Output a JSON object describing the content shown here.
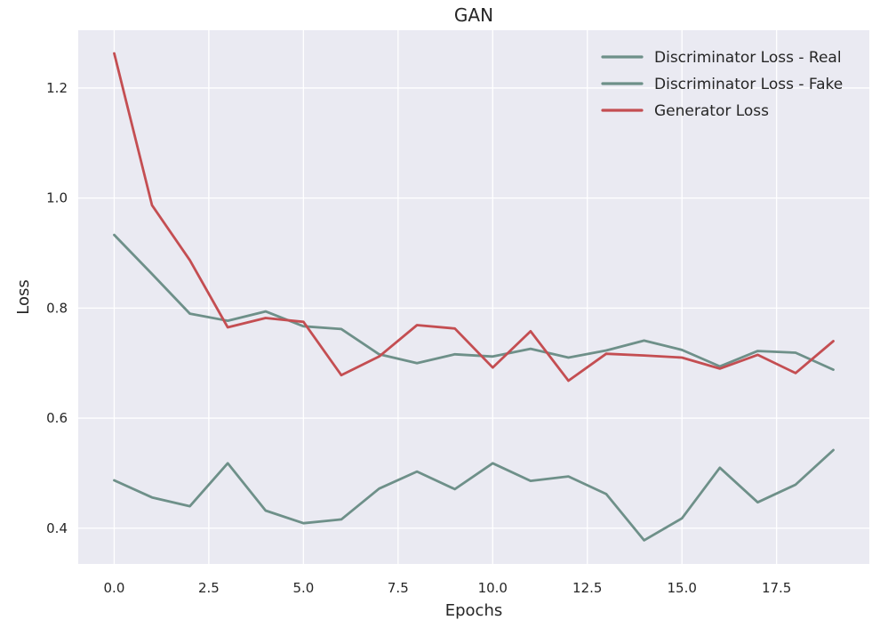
{
  "chart_data": {
    "type": "line",
    "title": "GAN",
    "xlabel": "Epochs",
    "ylabel": "Loss",
    "xlim": [
      -0.95,
      19.95
    ],
    "ylim": [
      0.335,
      1.305
    ],
    "xticks": [
      0.0,
      2.5,
      5.0,
      7.5,
      10.0,
      12.5,
      15.0,
      17.5
    ],
    "xtick_labels": [
      "0.0",
      "2.5",
      "5.0",
      "7.5",
      "10.0",
      "12.5",
      "15.0",
      "17.5"
    ],
    "yticks": [
      0.4,
      0.6,
      0.8,
      1.0,
      1.2
    ],
    "ytick_labels": [
      "0.4",
      "0.6",
      "0.8",
      "1.0",
      "1.2"
    ],
    "grid": true,
    "legend_position": "top-right",
    "x": [
      0,
      1,
      2,
      3,
      4,
      5,
      6,
      7,
      8,
      9,
      10,
      11,
      12,
      13,
      14,
      15,
      16,
      17,
      18,
      19
    ],
    "series": [
      {
        "name": "Discriminator Loss - Real",
        "color": "#6e9089",
        "values": [
          0.487,
          0.456,
          0.44,
          0.518,
          0.432,
          0.409,
          0.416,
          0.472,
          0.503,
          0.471,
          0.518,
          0.486,
          0.494,
          0.462,
          0.378,
          0.418,
          0.51,
          0.447,
          0.479,
          0.542
        ]
      },
      {
        "name": "Discriminator Loss - Fake",
        "color": "#6e9089",
        "values": [
          0.933,
          0.862,
          0.79,
          0.777,
          0.794,
          0.767,
          0.762,
          0.716,
          0.7,
          0.716,
          0.712,
          0.726,
          0.71,
          0.723,
          0.741,
          0.724,
          0.694,
          0.722,
          0.719,
          0.688
        ]
      },
      {
        "name": "Generator Loss",
        "color": "#c44e52",
        "values": [
          1.263,
          0.987,
          0.887,
          0.765,
          0.782,
          0.775,
          0.678,
          0.712,
          0.769,
          0.763,
          0.692,
          0.758,
          0.668,
          0.717,
          0.714,
          0.71,
          0.69,
          0.715,
          0.682,
          0.74
        ]
      }
    ]
  }
}
